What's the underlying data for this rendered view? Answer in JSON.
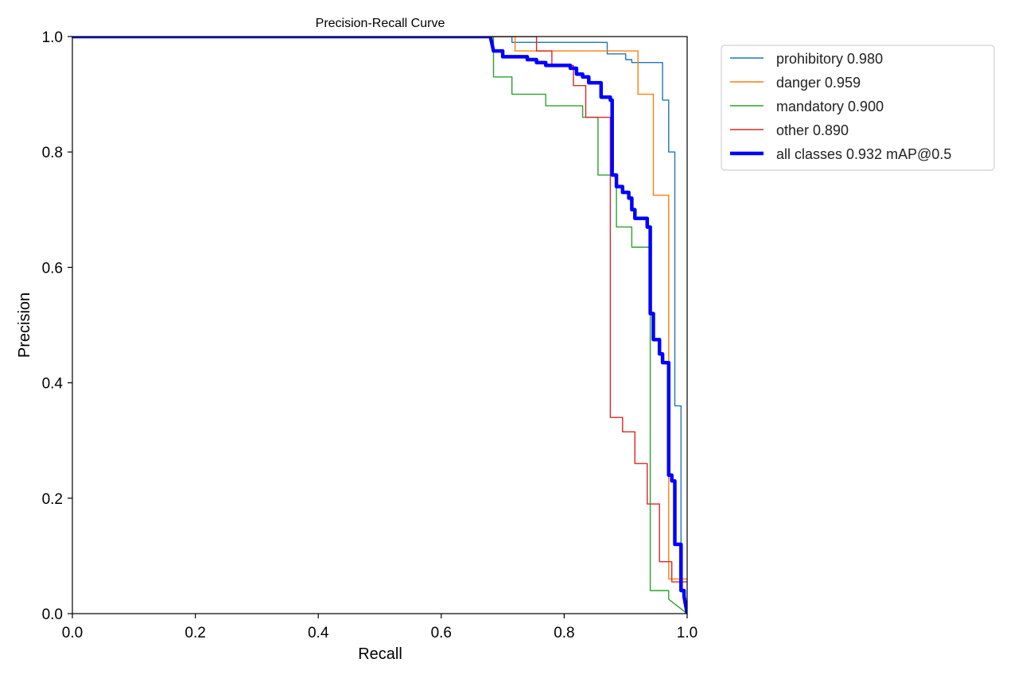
{
  "chart_data": {
    "type": "line",
    "title": "Precision-Recall Curve",
    "xlabel": "Recall",
    "ylabel": "Precision",
    "xlim": [
      0,
      1
    ],
    "ylim": [
      0,
      1
    ],
    "xticks": [
      "0.0",
      "0.2",
      "0.4",
      "0.6",
      "0.8",
      "1.0"
    ],
    "yticks": [
      "0.0",
      "0.2",
      "0.4",
      "0.6",
      "0.8",
      "1.0"
    ],
    "grid": false,
    "legend_position": "outside-top-right",
    "series": [
      {
        "name": "prohibitory 0.980",
        "color": "#1f77b4",
        "line_width": "thin",
        "points": [
          [
            0,
            1
          ],
          [
            0.715,
            1
          ],
          [
            0.715,
            0.99
          ],
          [
            0.87,
            0.99
          ],
          [
            0.87,
            0.97
          ],
          [
            0.9,
            0.97
          ],
          [
            0.9,
            0.96
          ],
          [
            0.91,
            0.96
          ],
          [
            0.91,
            0.955
          ],
          [
            0.96,
            0.955
          ],
          [
            0.96,
            0.89
          ],
          [
            0.97,
            0.89
          ],
          [
            0.97,
            0.8
          ],
          [
            0.98,
            0.8
          ],
          [
            0.98,
            0.36
          ],
          [
            0.99,
            0.36
          ],
          [
            0.99,
            0.05
          ],
          [
            1.0,
            0.0
          ]
        ]
      },
      {
        "name": "danger 0.959",
        "color": "#ff7f0e",
        "line_width": "thin",
        "points": [
          [
            0,
            1
          ],
          [
            0.72,
            1
          ],
          [
            0.72,
            0.975
          ],
          [
            0.92,
            0.975
          ],
          [
            0.92,
            0.9
          ],
          [
            0.945,
            0.9
          ],
          [
            0.945,
            0.725
          ],
          [
            0.97,
            0.725
          ],
          [
            0.97,
            0.06
          ],
          [
            1.0,
            0.06
          ]
        ]
      },
      {
        "name": "mandatory 0.900",
        "color": "#2ca02c",
        "line_width": "thin",
        "points": [
          [
            0,
            1
          ],
          [
            0.685,
            1
          ],
          [
            0.685,
            0.93
          ],
          [
            0.715,
            0.93
          ],
          [
            0.715,
            0.9
          ],
          [
            0.77,
            0.9
          ],
          [
            0.77,
            0.88
          ],
          [
            0.83,
            0.88
          ],
          [
            0.83,
            0.86
          ],
          [
            0.855,
            0.86
          ],
          [
            0.855,
            0.76
          ],
          [
            0.885,
            0.76
          ],
          [
            0.885,
            0.67
          ],
          [
            0.91,
            0.67
          ],
          [
            0.91,
            0.635
          ],
          [
            0.94,
            0.635
          ],
          [
            0.94,
            0.04
          ],
          [
            0.97,
            0.04
          ],
          [
            0.97,
            0.025
          ],
          [
            1.0,
            0.0
          ]
        ]
      },
      {
        "name": "other 0.890",
        "color": "#d62728",
        "line_width": "thin",
        "points": [
          [
            0,
            1
          ],
          [
            0.755,
            1
          ],
          [
            0.755,
            0.975
          ],
          [
            0.78,
            0.975
          ],
          [
            0.78,
            0.95
          ],
          [
            0.815,
            0.95
          ],
          [
            0.815,
            0.915
          ],
          [
            0.835,
            0.915
          ],
          [
            0.835,
            0.86
          ],
          [
            0.875,
            0.86
          ],
          [
            0.875,
            0.34
          ],
          [
            0.895,
            0.34
          ],
          [
            0.895,
            0.315
          ],
          [
            0.915,
            0.315
          ],
          [
            0.915,
            0.26
          ],
          [
            0.935,
            0.26
          ],
          [
            0.935,
            0.19
          ],
          [
            0.955,
            0.19
          ],
          [
            0.955,
            0.09
          ],
          [
            0.975,
            0.09
          ],
          [
            0.975,
            0.055
          ],
          [
            1.0,
            0.055
          ]
        ]
      },
      {
        "name": "all classes 0.932 mAP@0.5",
        "color": "#0000ff",
        "line_width": "thick",
        "points": [
          [
            0,
            1
          ],
          [
            0.68,
            1
          ],
          [
            0.685,
            0.975
          ],
          [
            0.7,
            0.975
          ],
          [
            0.7,
            0.965
          ],
          [
            0.74,
            0.965
          ],
          [
            0.74,
            0.96
          ],
          [
            0.755,
            0.96
          ],
          [
            0.755,
            0.955
          ],
          [
            0.77,
            0.955
          ],
          [
            0.77,
            0.95
          ],
          [
            0.81,
            0.95
          ],
          [
            0.81,
            0.945
          ],
          [
            0.82,
            0.945
          ],
          [
            0.82,
            0.935
          ],
          [
            0.83,
            0.935
          ],
          [
            0.83,
            0.93
          ],
          [
            0.84,
            0.93
          ],
          [
            0.84,
            0.92
          ],
          [
            0.86,
            0.92
          ],
          [
            0.86,
            0.895
          ],
          [
            0.875,
            0.895
          ],
          [
            0.875,
            0.89
          ],
          [
            0.878,
            0.89
          ],
          [
            0.878,
            0.76
          ],
          [
            0.885,
            0.76
          ],
          [
            0.885,
            0.74
          ],
          [
            0.895,
            0.74
          ],
          [
            0.895,
            0.73
          ],
          [
            0.905,
            0.73
          ],
          [
            0.905,
            0.72
          ],
          [
            0.91,
            0.72
          ],
          [
            0.91,
            0.71
          ],
          [
            0.91,
            0.7
          ],
          [
            0.915,
            0.7
          ],
          [
            0.915,
            0.685
          ],
          [
            0.935,
            0.685
          ],
          [
            0.935,
            0.67
          ],
          [
            0.94,
            0.67
          ],
          [
            0.94,
            0.52
          ],
          [
            0.945,
            0.52
          ],
          [
            0.945,
            0.475
          ],
          [
            0.955,
            0.475
          ],
          [
            0.955,
            0.45
          ],
          [
            0.96,
            0.45
          ],
          [
            0.96,
            0.435
          ],
          [
            0.97,
            0.435
          ],
          [
            0.97,
            0.24
          ],
          [
            0.975,
            0.24
          ],
          [
            0.975,
            0.23
          ],
          [
            0.98,
            0.23
          ],
          [
            0.98,
            0.12
          ],
          [
            0.99,
            0.12
          ],
          [
            0.99,
            0.04
          ],
          [
            0.995,
            0.04
          ],
          [
            0.995,
            0.03
          ],
          [
            1.0,
            0.0
          ]
        ]
      }
    ]
  }
}
